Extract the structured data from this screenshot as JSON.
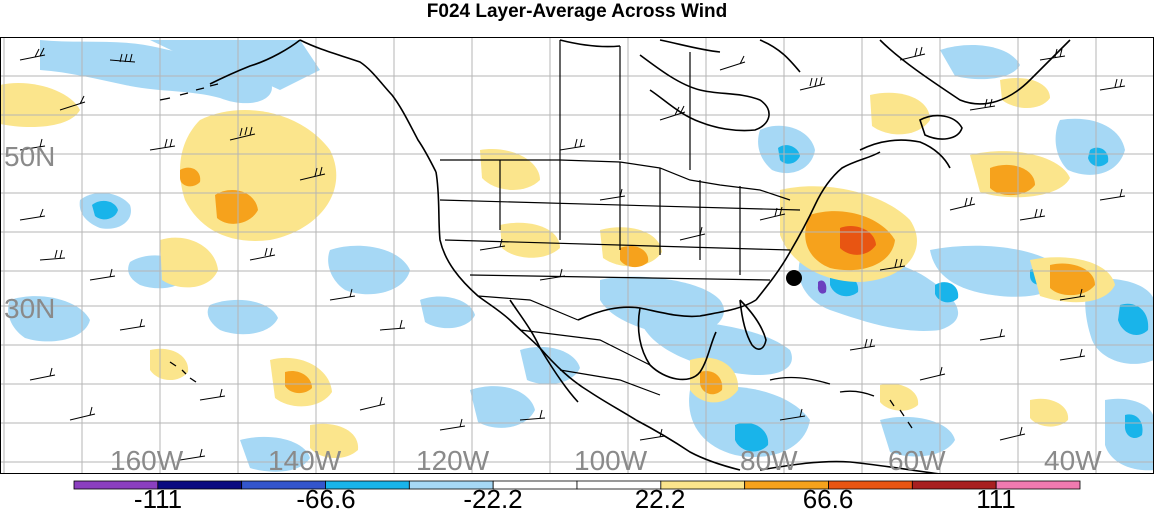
{
  "title": "F024 Layer-Average Across Wind",
  "map": {
    "lat_labels": [
      "50N",
      "30N"
    ],
    "lon_labels": [
      "160W",
      "140W",
      "120W",
      "100W",
      "80W",
      "60W",
      "40W"
    ]
  },
  "colorbar": {
    "colors": [
      "#8b3fbf",
      "#0a0a80",
      "#3355cc",
      "#19b4ea",
      "#a6d8f5",
      "#ffffff",
      "#ffffff",
      "#fbe58c",
      "#f6a21c",
      "#e85512",
      "#a82020",
      "#f07ab0"
    ],
    "labels": [
      "-111",
      "-66.6",
      "-22.2",
      "22.2",
      "66.6",
      "111"
    ]
  },
  "colors": {
    "light_blue": "#a6d8f5",
    "blue": "#19b4ea",
    "light_yellow": "#fbe58c",
    "orange": "#f6a21c",
    "red_orange": "#e85512",
    "purple": "#6b3fbf"
  }
}
